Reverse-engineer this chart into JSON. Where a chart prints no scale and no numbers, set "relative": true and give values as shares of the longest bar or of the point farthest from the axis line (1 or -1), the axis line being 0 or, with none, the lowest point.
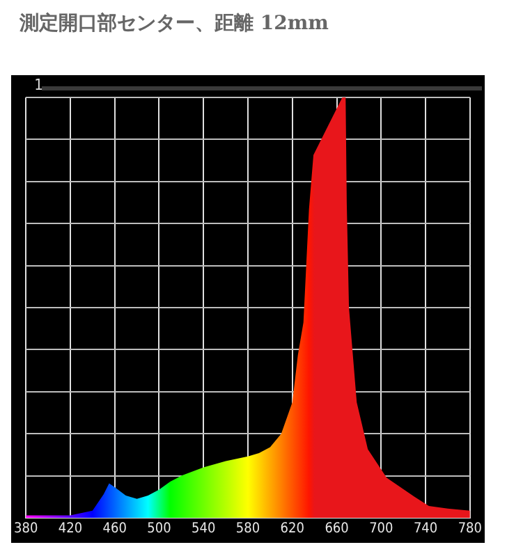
{
  "chart_data": {
    "type": "area",
    "title": "測定開口部センター、距離 12mm",
    "x": [
      380,
      420,
      440,
      450,
      455,
      460,
      470,
      480,
      490,
      500,
      510,
      520,
      540,
      560,
      580,
      590,
      600,
      610,
      620,
      625,
      630,
      635,
      639,
      665,
      668,
      669,
      671,
      678,
      688,
      705,
      730,
      743,
      760,
      780
    ],
    "series": [
      {
        "color": "#e8161b",
        "values": [
          0.006,
          0.006,
          0.017,
          0.056,
          0.082,
          0.073,
          0.053,
          0.045,
          0.053,
          0.067,
          0.086,
          0.1,
          0.12,
          0.135,
          0.146,
          0.154,
          0.168,
          0.2,
          0.275,
          0.387,
          0.465,
          0.734,
          0.863,
          1,
          1,
          0.75,
          0.5,
          0.275,
          0.163,
          0.095,
          0.05,
          0.028,
          0.022,
          0.017
        ]
      }
    ],
    "relative": true,
    "xlim": [
      380,
      780
    ],
    "xticks": [
      380,
      420,
      460,
      500,
      540,
      580,
      620,
      660,
      700,
      740,
      780
    ],
    "grid": true,
    "annotations": [
      "1"
    ]
  }
}
